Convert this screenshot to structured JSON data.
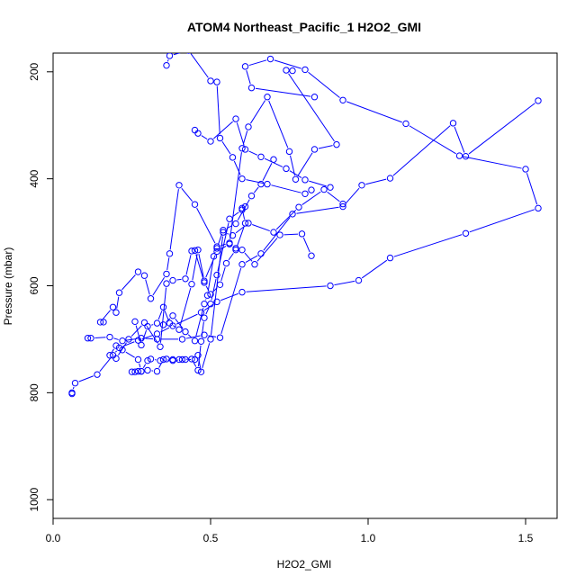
{
  "chart_data": {
    "type": "line",
    "title": "ATOM4 Northeast_Pacific_1 H2O2_GMI",
    "xlabel": "H2O2_GMI",
    "ylabel": "Pressure (mbar)",
    "xlim": [
      0.0,
      1.6
    ],
    "ylim": [
      1035,
      165
    ],
    "y_reversed": true,
    "x_ticks": [
      "0.0",
      "0.5",
      "1.0",
      "1.5"
    ],
    "x_tick_values": [
      0.0,
      0.5,
      1.0,
      1.5
    ],
    "y_ticks": [
      "200",
      "400",
      "600",
      "800",
      "1000"
    ],
    "y_tick_values": [
      200,
      400,
      600,
      800,
      1000
    ],
    "grid": false,
    "legend": "none",
    "series_color": "#0000ff",
    "marker": "open-circle",
    "series": [
      {
        "x": [
          0.06,
          0.06,
          0.07,
          0.14,
          0.19,
          0.21,
          0.27,
          0.33,
          0.38,
          0.47,
          0.52,
          0.6,
          0.88,
          0.97,
          1.07,
          1.31,
          1.54,
          1.5,
          1.29,
          1.12,
          0.92,
          0.8,
          0.69,
          0.61,
          0.63,
          0.83
        ],
        "y": [
          802,
          800,
          782,
          766,
          730,
          716,
          702,
          690,
          675,
          650,
          630,
          612,
          600,
          590,
          548,
          502,
          455,
          382,
          357,
          297,
          253,
          196,
          176,
          190,
          230,
          247
        ]
      },
      {
        "x": [
          0.11,
          0.12,
          0.18,
          0.22,
          0.28,
          0.33,
          0.41,
          0.48,
          0.53,
          0.6,
          0.66,
          0.76,
          0.92,
          0.98,
          1.07,
          1.27,
          1.31,
          1.54
        ],
        "y": [
          698,
          698,
          696,
          703,
          698,
          700,
          700,
          692,
          697,
          560,
          540,
          466,
          452,
          412,
          399,
          296,
          358,
          254
        ]
      },
      {
        "x": [
          0.25,
          0.26,
          0.27,
          0.28,
          0.3,
          0.31,
          0.34,
          0.36,
          0.38,
          0.4,
          0.42,
          0.45,
          0.46,
          0.47,
          0.5,
          0.54,
          0.57,
          0.62,
          0.7,
          0.78,
          0.86,
          0.92
        ],
        "y": [
          761,
          761,
          760,
          760,
          740,
          737,
          740,
          737,
          738,
          738,
          738,
          738,
          730,
          761,
          700,
          500,
          506,
          483,
          500,
          453,
          420,
          447
        ]
      },
      {
        "x": [
          0.16,
          0.15,
          0.19,
          0.2,
          0.21,
          0.27,
          0.29,
          0.31,
          0.36,
          0.37,
          0.4,
          0.45,
          0.52,
          0.56,
          0.6,
          0.62,
          0.68,
          0.75,
          0.77,
          0.83,
          0.9,
          0.74,
          0.76
        ],
        "y": [
          668,
          668,
          640,
          650,
          613,
          574,
          581,
          624,
          578,
          540,
          412,
          448,
          527,
          520,
          343,
          303,
          247,
          349,
          401,
          345,
          336,
          197,
          198
        ]
      },
      {
        "x": [
          0.26,
          0.28,
          0.3,
          0.33,
          0.35,
          0.37,
          0.4,
          0.44,
          0.46,
          0.48,
          0.52,
          0.56,
          0.58,
          0.6,
          0.64,
          0.72,
          0.79,
          0.82
        ],
        "y": [
          667,
          711,
          676,
          670,
          640,
          670,
          682,
          597,
          533,
          591,
          536,
          522,
          530,
          533,
          560,
          505,
          503,
          544
        ]
      },
      {
        "x": [
          0.2,
          0.24,
          0.29,
          0.34,
          0.36,
          0.38,
          0.42,
          0.44,
          0.45,
          0.48,
          0.5,
          0.53,
          0.55,
          0.58,
          0.61,
          0.6
        ],
        "y": [
          736,
          700,
          669,
          714,
          596,
          590,
          587,
          535,
          534,
          594,
          616,
          598,
          558,
          533,
          483,
          455
        ]
      },
      {
        "x": [
          0.18,
          0.2,
          0.22,
          0.27,
          0.28,
          0.3,
          0.33,
          0.35,
          0.38,
          0.41,
          0.44,
          0.46,
          0.47,
          0.48,
          0.5,
          0.52,
          0.56,
          0.6,
          0.61
        ],
        "y": [
          730,
          712,
          720,
          738,
          760,
          758,
          760,
          738,
          740,
          738,
          737,
          758,
          704,
          660,
          634,
          580,
          475,
          458,
          452
        ]
      },
      {
        "x": [
          0.35,
          0.38,
          0.42,
          0.45,
          0.48,
          0.49,
          0.51,
          0.52,
          0.54,
          0.58,
          0.63,
          0.66,
          0.7
        ],
        "y": [
          673,
          656,
          686,
          703,
          634,
          618,
          545,
          530,
          496,
          484,
          432,
          410,
          364
        ]
      },
      {
        "x": [
          0.36,
          0.37,
          0.43,
          0.5,
          0.52,
          0.53,
          0.57,
          0.6,
          0.68,
          0.8,
          0.82
        ],
        "y": [
          188,
          170,
          160,
          217,
          219,
          324,
          360,
          400,
          410,
          428,
          421
        ]
      },
      {
        "x": [
          0.45,
          0.46,
          0.5,
          0.58,
          0.61,
          0.66,
          0.74,
          0.8,
          0.88
        ],
        "y": [
          309,
          315,
          330,
          288,
          345,
          359,
          381,
          402,
          416
        ]
      }
    ]
  }
}
